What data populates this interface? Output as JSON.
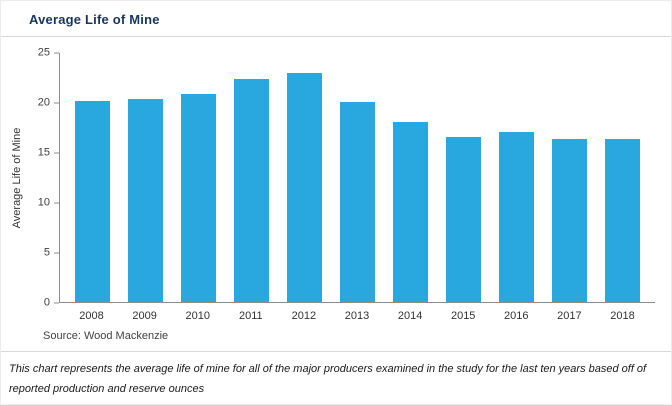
{
  "title": "Average Life of Mine",
  "source": "Source: Wood Mackenzie",
  "caption": {
    "line1": "This chart represents the average life of mine for all of the major producers examined in the study for the last ten years based off of",
    "line2": "reported production and reserve ounces"
  },
  "chart_data": {
    "type": "bar",
    "title": "Average Life of Mine",
    "categories": [
      "2008",
      "2009",
      "2010",
      "2011",
      "2012",
      "2013",
      "2014",
      "2015",
      "2016",
      "2017",
      "2018"
    ],
    "values": [
      20.2,
      20.4,
      20.9,
      22.4,
      23.0,
      20.1,
      18.1,
      16.6,
      17.1,
      16.4,
      16.4
    ],
    "xlabel": "",
    "ylabel": "Average Life of Mine",
    "ylim": [
      0,
      25
    ],
    "yticks": [
      0,
      5,
      10,
      15,
      20,
      25
    ],
    "bar_color": "#29a8df",
    "axis_color": "#8c8c8c",
    "grid": false,
    "legend": false
  }
}
